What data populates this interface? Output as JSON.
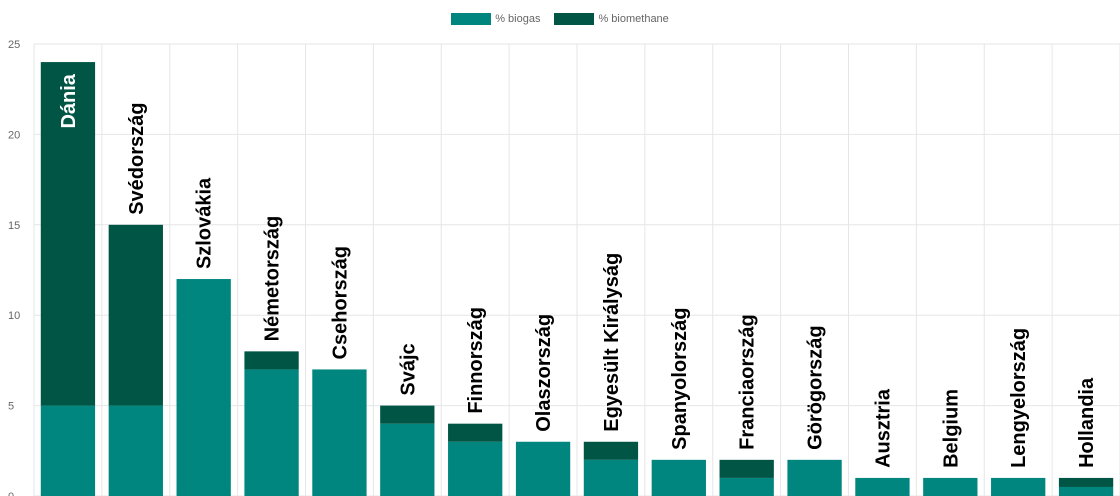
{
  "legend": {
    "biogas_label": "% biogas",
    "biomethane_label": "% biomethane"
  },
  "colors": {
    "biogas": "#00867f",
    "biomethane": "#005544",
    "grid": "#e6e6e6",
    "label_on_bar": "#ffffff",
    "label_default": "#000000"
  },
  "chart_data": {
    "type": "bar",
    "stacked": true,
    "categories": [
      "Dánia",
      "Svédország",
      "Szlovákia",
      "Németország",
      "Csehország",
      "Svájc",
      "Finnország",
      "Olaszország",
      "Egyesült Királyság",
      "Spanyolország",
      "Franciaország",
      "Görögország",
      "Ausztria",
      "Belgium",
      "Lengyelország",
      "Hollandia"
    ],
    "series": [
      {
        "name": "% biogas",
        "values": [
          5,
          5,
          12,
          7,
          7,
          4,
          3,
          3,
          2,
          2,
          1,
          2,
          1,
          1,
          1,
          0.5
        ]
      },
      {
        "name": "% biomethane",
        "values": [
          19,
          10,
          0,
          1,
          0,
          1,
          1,
          0,
          1,
          0,
          1,
          0,
          0,
          0,
          0,
          0.5
        ]
      }
    ],
    "ylim": [
      0,
      25
    ],
    "yticks": [
      0,
      5,
      10,
      15,
      20,
      25
    ],
    "grid": true,
    "legend_position": "top"
  }
}
